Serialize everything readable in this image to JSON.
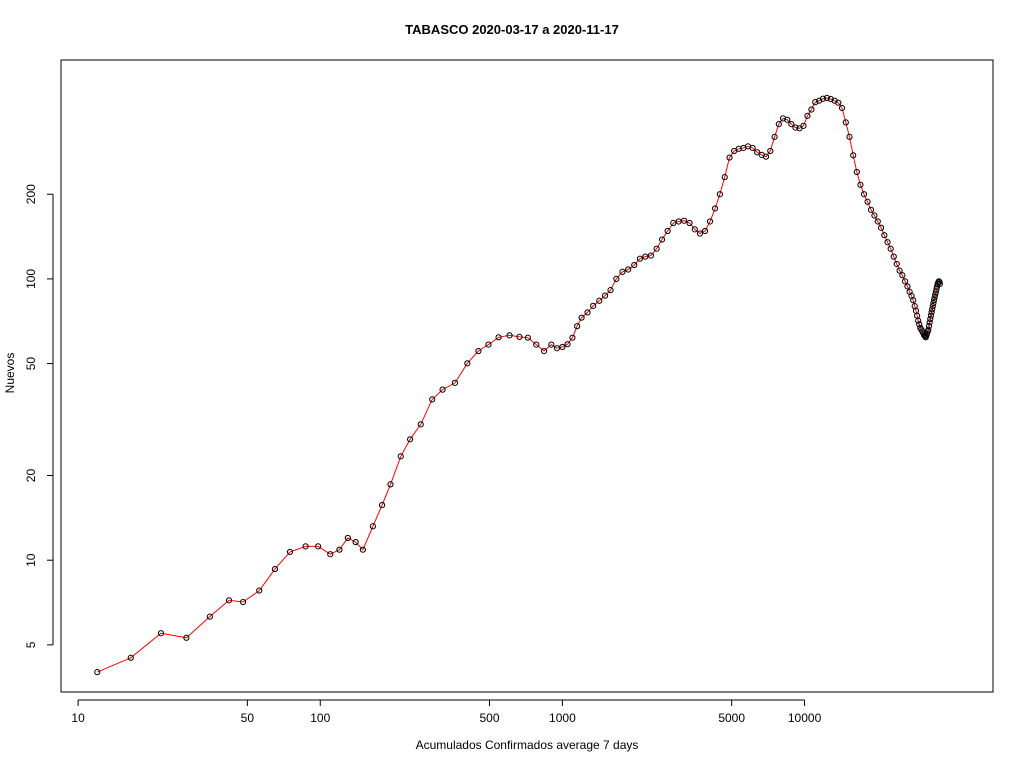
{
  "chart_data": {
    "type": "line",
    "title": "TABASCO 2020-03-17 a 2020-11-17",
    "xlabel": "Acumulados Confirmados average  7  days",
    "ylabel": "Nuevos",
    "xscale": "log",
    "yscale": "log",
    "xlim": [
      8.5,
      60000
    ],
    "ylim": [
      3.4,
      600
    ],
    "xticks": [
      10,
      50,
      100,
      500,
      1000,
      5000,
      10000
    ],
    "xtick_labels": [
      "10",
      "50",
      "100",
      "500",
      "1000",
      "5000",
      "10000"
    ],
    "yticks": [
      5,
      10,
      20,
      50,
      100,
      200
    ],
    "ytick_labels": [
      "5",
      "10",
      "20",
      "50",
      "100",
      "200"
    ],
    "grid": false,
    "line_color": "#ff0000",
    "marker_color": "#000000",
    "x": [
      12,
      16.5,
      22,
      28,
      35,
      42,
      48,
      56,
      65,
      75,
      87,
      98,
      110,
      120,
      130,
      140,
      150,
      165,
      180,
      195,
      215,
      235,
      260,
      290,
      320,
      360,
      405,
      450,
      495,
      545,
      605,
      665,
      720,
      780,
      840,
      900,
      950,
      1000,
      1050,
      1100,
      1150,
      1200,
      1270,
      1340,
      1420,
      1500,
      1580,
      1670,
      1770,
      1870,
      1980,
      2090,
      2200,
      2320,
      2450,
      2580,
      2720,
      2870,
      3020,
      3180,
      3350,
      3520,
      3700,
      3880,
      4070,
      4270,
      4470,
      4680,
      4900,
      5120,
      5350,
      5590,
      5840,
      6100,
      6370,
      6650,
      6930,
      7220,
      7520,
      7830,
      8150,
      8480,
      8820,
      9170,
      9530,
      9900,
      10280,
      10670,
      11070,
      11490,
      11920,
      12370,
      12830,
      13300,
      13780,
      14280,
      14800,
      15330,
      15880,
      16440,
      17010,
      17600,
      18200,
      18810,
      19430,
      20060,
      20700,
      21350,
      22010,
      22680,
      23350,
      24020,
      24690,
      25350,
      26000,
      26600,
      27150,
      27650,
      28100,
      28500,
      28850,
      29150,
      29450,
      29750,
      30050,
      30350,
      30650,
      30950,
      31200,
      31450,
      31650,
      31850,
      32050,
      32250,
      32450,
      32650,
      32850,
      33050,
      33250,
      33450,
      33650,
      33850,
      34050,
      34250,
      34450,
      34650,
      34850,
      35050,
      35250,
      35450,
      35650,
      35850,
      36050,
      36200
    ],
    "y": [
      4,
      4.5,
      5.5,
      5.3,
      6.3,
      7.2,
      7.1,
      7.8,
      9.3,
      10.7,
      11.2,
      11.2,
      10.5,
      10.9,
      12.0,
      11.6,
      10.9,
      13.2,
      15.7,
      18.6,
      23.4,
      26.9,
      30.4,
      37.3,
      40.4,
      42.7,
      50.1,
      55.4,
      58.4,
      62.0,
      63.0,
      62.2,
      61.8,
      58.4,
      55.4,
      58.4,
      56.7,
      57.3,
      58.6,
      61.8,
      67.9,
      72.8,
      76.0,
      80.2,
      83.6,
      87.2,
      91.2,
      100.0,
      106.0,
      108.0,
      112.0,
      118.0,
      120.0,
      121.0,
      128.0,
      138.0,
      148.0,
      158.0,
      160.0,
      161.0,
      158.0,
      150.0,
      145.0,
      148.0,
      160.0,
      178.0,
      200.0,
      230.0,
      270.0,
      285.0,
      290.0,
      292.0,
      296.0,
      292.0,
      282.0,
      276.0,
      272.0,
      285.0,
      320.0,
      355.0,
      372.0,
      368.0,
      355.0,
      345.0,
      343.0,
      350.0,
      380.0,
      400.0,
      425.0,
      430.0,
      437.0,
      440.0,
      436.0,
      430.0,
      423.0,
      405.0,
      360.0,
      320.0,
      275.0,
      240.0,
      216.0,
      200.0,
      188.0,
      176.0,
      168.0,
      160.0,
      152.0,
      143.0,
      135.0,
      128.0,
      120.0,
      113.0,
      107.0,
      103.0,
      98.0,
      94.0,
      90.0,
      87.0,
      84.0,
      80.0,
      77.0,
      74.0,
      71.0,
      69.0,
      67.0,
      66.0,
      65.0,
      64.0,
      63.0,
      62.5,
      62.0,
      63.0,
      64.0,
      65.0,
      66.0,
      68.0,
      70.0,
      72.0,
      74.0,
      76.0,
      78.0,
      80.0,
      82.0,
      84.0,
      86.0,
      88.0,
      90.0,
      92.0,
      94.0,
      96.0,
      97.0,
      98.0,
      97.5,
      96.0
    ]
  }
}
